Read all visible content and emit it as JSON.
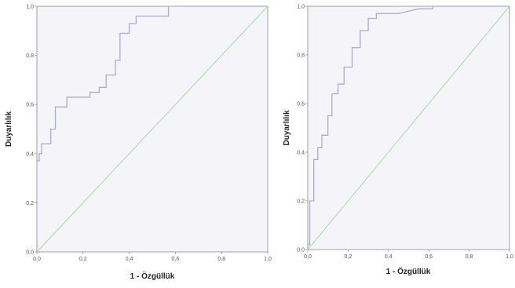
{
  "chart_data": [
    {
      "type": "line",
      "xlabel": "1 - Özgüllük",
      "ylabel": "Duyarlılık",
      "xlim": [
        0,
        1
      ],
      "ylim": [
        0,
        1
      ],
      "xticks": [
        "0,0",
        "0,2",
        "0,4",
        "0,6",
        "0,8",
        "1,0"
      ],
      "yticks": [
        "0,0",
        "0,2",
        "0,4",
        "0,6",
        "0,8",
        "1,0"
      ],
      "grid": false,
      "series": [
        {
          "kind": "roc",
          "color": "#a9acd6",
          "x": [
            0.0,
            0.0,
            0.01,
            0.01,
            0.02,
            0.02,
            0.06,
            0.06,
            0.08,
            0.08,
            0.13,
            0.13,
            0.23,
            0.23,
            0.27,
            0.27,
            0.3,
            0.3,
            0.34,
            0.34,
            0.36,
            0.36,
            0.4,
            0.4,
            0.43,
            0.43,
            0.57,
            0.57,
            1.0
          ],
          "y": [
            0.0,
            0.37,
            0.37,
            0.4,
            0.4,
            0.44,
            0.44,
            0.5,
            0.5,
            0.59,
            0.59,
            0.63,
            0.63,
            0.65,
            0.65,
            0.67,
            0.67,
            0.72,
            0.72,
            0.78,
            0.78,
            0.89,
            0.89,
            0.93,
            0.93,
            0.96,
            0.96,
            1.0,
            1.0
          ]
        },
        {
          "kind": "reference",
          "color": "#9be39b",
          "x": [
            0,
            1
          ],
          "y": [
            0,
            1
          ]
        }
      ]
    },
    {
      "type": "line",
      "xlabel": "1 - Özgüllük",
      "ylabel": "Duyarlılık",
      "xlim": [
        0,
        1
      ],
      "ylim": [
        0,
        1
      ],
      "xticks": [
        "0,0",
        "0,2",
        "0,4",
        "0,6",
        "0,8",
        "1,0"
      ],
      "yticks": [
        "0,0",
        "0,2",
        "0,4",
        "0,6",
        "0,8",
        "1,0"
      ],
      "grid": false,
      "series": [
        {
          "kind": "roc",
          "color": "#a9acd6",
          "x": [
            0.0,
            0.0,
            0.01,
            0.01,
            0.03,
            0.03,
            0.05,
            0.05,
            0.07,
            0.07,
            0.1,
            0.1,
            0.12,
            0.12,
            0.15,
            0.15,
            0.18,
            0.18,
            0.22,
            0.22,
            0.26,
            0.26,
            0.3,
            0.3,
            0.34,
            0.34,
            0.45,
            0.5,
            0.55,
            0.62,
            0.62,
            1.0
          ],
          "y": [
            0.0,
            0.02,
            0.02,
            0.2,
            0.2,
            0.37,
            0.37,
            0.42,
            0.42,
            0.47,
            0.47,
            0.55,
            0.55,
            0.64,
            0.64,
            0.68,
            0.68,
            0.75,
            0.75,
            0.83,
            0.83,
            0.9,
            0.9,
            0.95,
            0.95,
            0.97,
            0.97,
            0.98,
            0.99,
            0.99,
            1.0,
            1.0
          ]
        },
        {
          "kind": "reference",
          "color": "#9be39b",
          "x": [
            0,
            1
          ],
          "y": [
            0,
            1
          ]
        }
      ]
    }
  ]
}
